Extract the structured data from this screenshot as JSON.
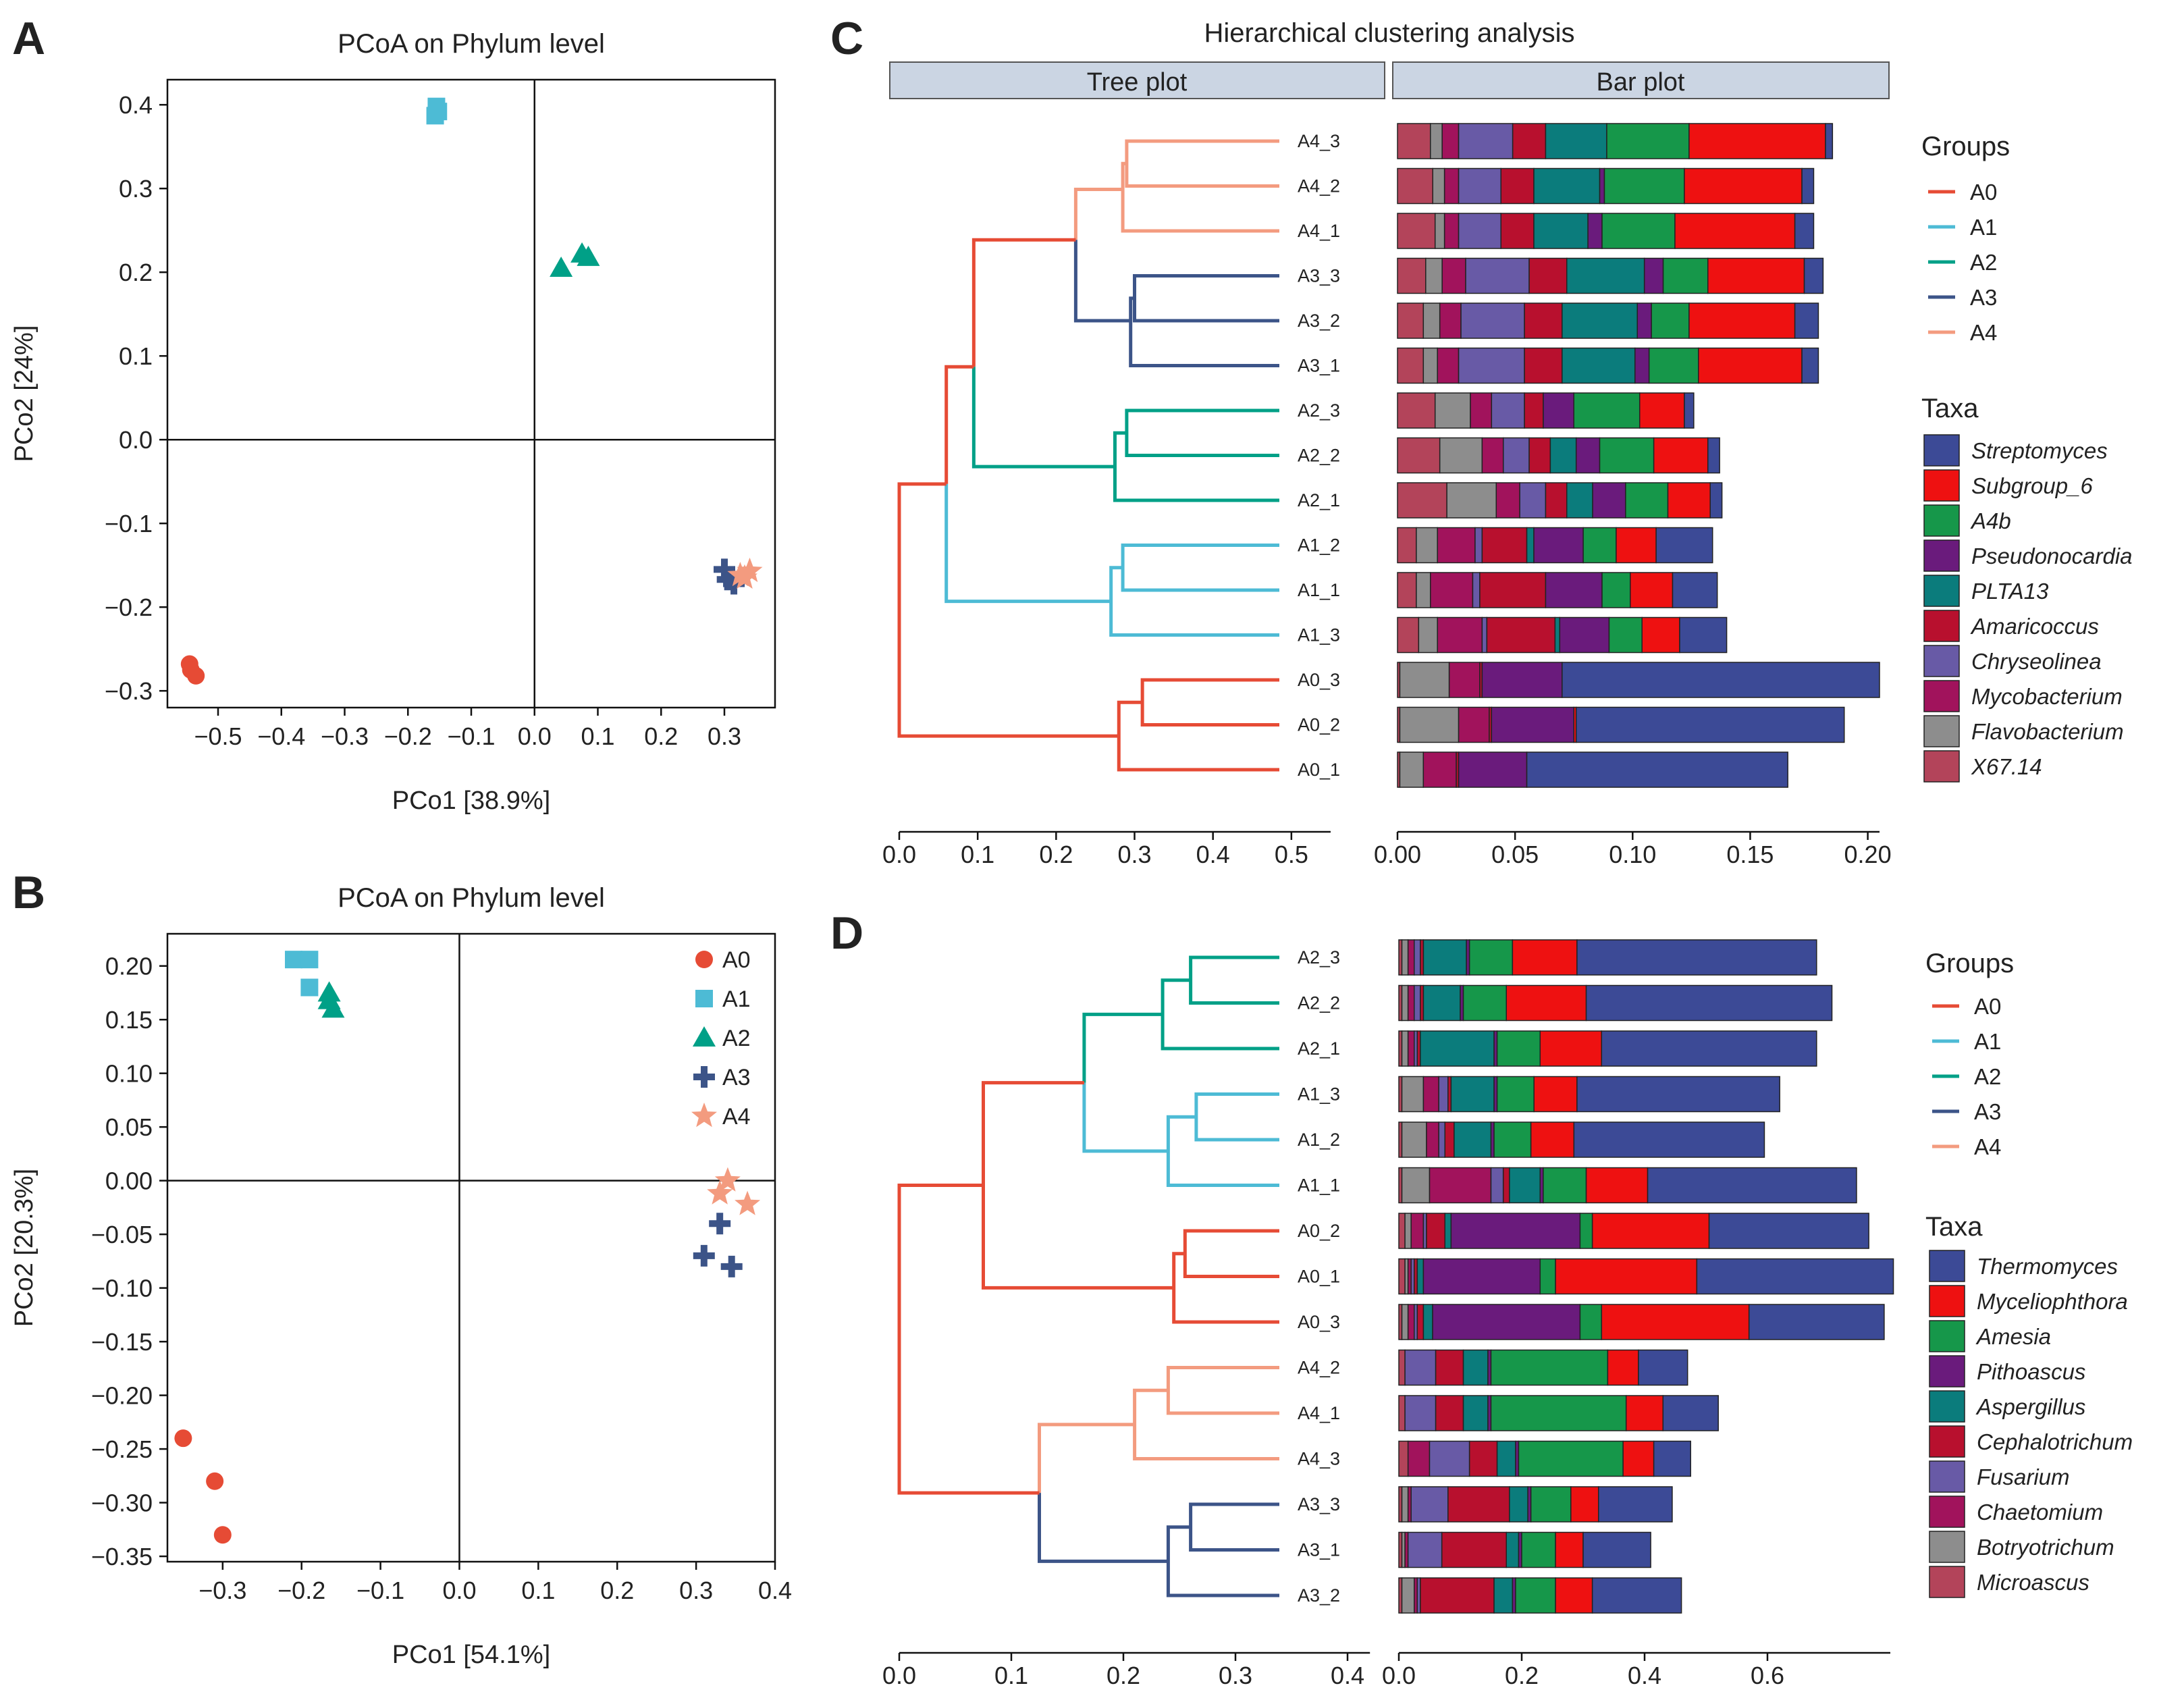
{
  "colors": {
    "groups": {
      "A0": "#e64b35",
      "A1": "#4dbbd5",
      "A2": "#00a087",
      "A3": "#3c5488",
      "A4": "#f39b7f"
    },
    "taxa_c": [
      "#3c4a96",
      "#ee1111",
      "#16974a",
      "#6a1b7c",
      "#0b7c7c",
      "#b8102e",
      "#685aa6",
      "#a1135c",
      "#8d8d8d",
      "#b3445a"
    ],
    "taxa_d": [
      "#3c4a96",
      "#ee1111",
      "#16974a",
      "#6a1b7c",
      "#0b7c7c",
      "#b8102e",
      "#685aa6",
      "#a1135c",
      "#8d8d8d",
      "#b3445a"
    ]
  },
  "panels": {
    "A": "A",
    "B": "B",
    "C": "C",
    "D": "D"
  },
  "chart_data": [
    {
      "id": "A",
      "type": "scatter",
      "title": "PCoA on Phylum level",
      "xlabel": "PCo1 [38.9%]",
      "ylabel": "PCo2 [24%]",
      "xlim": [
        -0.58,
        0.38
      ],
      "ylim": [
        -0.32,
        0.43
      ],
      "xticks": [
        -0.5,
        -0.4,
        -0.3,
        -0.2,
        -0.1,
        0.0,
        0.1,
        0.2,
        0.3
      ],
      "xtick_labels": [
        "−0.5",
        "−0.4",
        "−0.3",
        "−0.2",
        "−0.1",
        "0.0",
        "0.1",
        "0.2",
        "0.3"
      ],
      "yticks": [
        -0.3,
        -0.2,
        -0.1,
        0.0,
        0.1,
        0.2,
        0.3,
        0.4
      ],
      "ytick_labels": [
        "−0.3",
        "−0.2",
        "−0.1",
        "0.0",
        "0.1",
        "0.2",
        "0.3",
        "0.4"
      ],
      "series": [
        {
          "name": "A0",
          "shape": "circle",
          "points": [
            [
              -0.545,
              -0.268
            ],
            [
              -0.543,
              -0.275
            ],
            [
              -0.535,
              -0.282
            ]
          ]
        },
        {
          "name": "A1",
          "shape": "square",
          "points": [
            [
              -0.155,
              0.398
            ],
            [
              -0.152,
              0.392
            ],
            [
              -0.157,
              0.387
            ]
          ]
        },
        {
          "name": "A2",
          "shape": "triangle",
          "points": [
            [
              0.042,
              0.205
            ],
            [
              0.075,
              0.222
            ],
            [
              0.085,
              0.218
            ]
          ]
        },
        {
          "name": "A3",
          "shape": "plus",
          "points": [
            [
              0.305,
              -0.167
            ],
            [
              0.315,
              -0.172
            ],
            [
              0.3,
              -0.155
            ]
          ]
        },
        {
          "name": "A4",
          "shape": "star",
          "points": [
            [
              0.325,
              -0.162
            ],
            [
              0.34,
              -0.157
            ],
            [
              0.332,
              -0.165
            ]
          ]
        }
      ],
      "legend": false
    },
    {
      "id": "B",
      "type": "scatter",
      "title": "PCoA on Phylum level",
      "xlabel": "PCo1 [54.1%]",
      "ylabel": "PCo2 [20.3%]",
      "xlim": [
        -0.37,
        0.4
      ],
      "ylim": [
        -0.355,
        0.23
      ],
      "xticks": [
        -0.3,
        -0.2,
        -0.1,
        0.0,
        0.1,
        0.2,
        0.3,
        0.4
      ],
      "xtick_labels": [
        "−0.3",
        "−0.2",
        "−0.1",
        "0.0",
        "0.1",
        "0.2",
        "0.3",
        "0.4"
      ],
      "yticks": [
        -0.35,
        -0.3,
        -0.25,
        -0.2,
        -0.15,
        -0.1,
        -0.05,
        0.0,
        0.05,
        0.1,
        0.15,
        0.2
      ],
      "ytick_labels": [
        "−0.35",
        "−0.30",
        "−0.25",
        "−0.20",
        "−0.15",
        "−0.10",
        "−0.05",
        "0.00",
        "0.05",
        "0.10",
        "0.15",
        "0.20"
      ],
      "series": [
        {
          "name": "A0",
          "shape": "circle",
          "points": [
            [
              -0.35,
              -0.24
            ],
            [
              -0.31,
              -0.28
            ],
            [
              -0.3,
              -0.33
            ]
          ]
        },
        {
          "name": "A1",
          "shape": "square",
          "points": [
            [
              -0.21,
              0.206
            ],
            [
              -0.19,
              0.206
            ],
            [
              -0.19,
              0.18
            ]
          ]
        },
        {
          "name": "A2",
          "shape": "triangle",
          "points": [
            [
              -0.165,
              0.175
            ],
            [
              -0.16,
              0.16
            ],
            [
              -0.165,
              0.168
            ]
          ]
        },
        {
          "name": "A3",
          "shape": "plus",
          "points": [
            [
              0.33,
              -0.04
            ],
            [
              0.31,
              -0.07
            ],
            [
              0.345,
              -0.08
            ]
          ]
        },
        {
          "name": "A4",
          "shape": "star",
          "points": [
            [
              0.34,
              0.0
            ],
            [
              0.33,
              -0.012
            ],
            [
              0.365,
              -0.022
            ]
          ]
        }
      ],
      "legend": [
        "A0",
        "A1",
        "A2",
        "A3",
        "A4"
      ]
    },
    {
      "id": "C",
      "type": "dendrogram+stacked-bar",
      "title": "Hierarchical clustering analysis",
      "tree_strip": "Tree plot",
      "bar_strip": "Bar plot",
      "tree_xlim": [
        0,
        0.55
      ],
      "tree_ticks": [
        0.0,
        0.1,
        0.2,
        0.3,
        0.4,
        0.5
      ],
      "tree_tick_labels": [
        "0.0",
        "0.1",
        "0.2",
        "0.3",
        "0.4",
        "0.5"
      ],
      "bar_xlim": [
        0,
        0.205
      ],
      "bar_ticks": [
        0.0,
        0.05,
        0.1,
        0.15,
        0.2
      ],
      "bar_tick_labels": [
        "0.00",
        "0.05",
        "0.10",
        "0.15",
        "0.20"
      ],
      "samples": [
        "A4_3",
        "A4_2",
        "A4_1",
        "A3_3",
        "A3_2",
        "A3_1",
        "A2_3",
        "A2_2",
        "A2_1",
        "A1_2",
        "A1_1",
        "A1_3",
        "A0_3",
        "A0_2",
        "A0_1"
      ],
      "taxa": [
        "Streptomyces",
        "Subgroup_6",
        "A4b",
        "Pseudonocardia",
        "PLTA13",
        "Amaricoccus",
        "Chryseolinea",
        "Mycobacterium",
        "Flavobacterium",
        "X67.14"
      ],
      "bars": [
        [
          0.003,
          0.058,
          0.035,
          0.0,
          0.026,
          0.014,
          0.023,
          0.007,
          0.005,
          0.014
        ],
        [
          0.005,
          0.05,
          0.034,
          0.002,
          0.028,
          0.014,
          0.018,
          0.006,
          0.005,
          0.015
        ],
        [
          0.008,
          0.051,
          0.031,
          0.006,
          0.023,
          0.014,
          0.018,
          0.006,
          0.004,
          0.016
        ],
        [
          0.008,
          0.041,
          0.019,
          0.008,
          0.033,
          0.016,
          0.027,
          0.01,
          0.007,
          0.012
        ],
        [
          0.01,
          0.045,
          0.016,
          0.006,
          0.032,
          0.016,
          0.027,
          0.009,
          0.007,
          0.011
        ],
        [
          0.007,
          0.044,
          0.021,
          0.006,
          0.031,
          0.016,
          0.028,
          0.009,
          0.006,
          0.011
        ],
        [
          0.004,
          0.019,
          0.028,
          0.013,
          0.0,
          0.008,
          0.014,
          0.009,
          0.015,
          0.016
        ],
        [
          0.005,
          0.023,
          0.023,
          0.01,
          0.011,
          0.009,
          0.011,
          0.009,
          0.018,
          0.018
        ],
        [
          0.005,
          0.018,
          0.018,
          0.014,
          0.011,
          0.009,
          0.011,
          0.01,
          0.021,
          0.021
        ],
        [
          0.024,
          0.017,
          0.014,
          0.021,
          0.003,
          0.019,
          0.003,
          0.016,
          0.009,
          0.008
        ],
        [
          0.019,
          0.018,
          0.012,
          0.024,
          0.0,
          0.028,
          0.003,
          0.018,
          0.006,
          0.008
        ],
        [
          0.02,
          0.016,
          0.014,
          0.021,
          0.002,
          0.029,
          0.002,
          0.019,
          0.008,
          0.009
        ]
      ],
      "bars_a0": [
        [
          0.135,
          0.0,
          0.0,
          0.034,
          0.0,
          0.001,
          0.0,
          0.013,
          0.021,
          0.001
        ],
        [
          0.114,
          0.001,
          0.0,
          0.035,
          0.0,
          0.001,
          0.0,
          0.013,
          0.025,
          0.001
        ],
        [
          0.111,
          0.0,
          0.0,
          0.029,
          0.0,
          0.001,
          0.0,
          0.014,
          0.01,
          0.001
        ]
      ],
      "legend_groups": [
        "A0",
        "A1",
        "A2",
        "A3",
        "A4"
      ]
    },
    {
      "id": "D",
      "type": "dendrogram+stacked-bar",
      "tree_xlim": [
        0,
        0.42
      ],
      "tree_ticks": [
        0.0,
        0.1,
        0.2,
        0.3,
        0.4
      ],
      "tree_tick_labels": [
        "0.0",
        "0.1",
        "0.2",
        "0.3",
        "0.4"
      ],
      "bar_xlim": [
        0,
        0.8
      ],
      "bar_ticks": [
        0.0,
        0.2,
        0.4,
        0.6
      ],
      "bar_tick_labels": [
        "0.0",
        "0.2",
        "0.4",
        "0.6"
      ],
      "samples": [
        "A2_3",
        "A2_2",
        "A2_1",
        "A1_3",
        "A1_2",
        "A1_1",
        "A0_2",
        "A0_1",
        "A0_3",
        "A4_2",
        "A4_1",
        "A4_3",
        "A3_3",
        "A3_1",
        "A3_2"
      ],
      "taxa": [
        "Thermomyces",
        "Myceliophthora",
        "Amesia",
        "Pithoascus",
        "Aspergillus",
        "Cephalotrichum",
        "Fusarium",
        "Chaetomium",
        "Botryotrichum",
        "Microascus"
      ],
      "bars": [
        [
          0.39,
          0.105,
          0.07,
          0.005,
          0.07,
          0.005,
          0.01,
          0.01,
          0.01,
          0.005
        ],
        [
          0.4,
          0.13,
          0.07,
          0.005,
          0.06,
          0.005,
          0.01,
          0.01,
          0.01,
          0.005
        ],
        [
          0.35,
          0.1,
          0.07,
          0.005,
          0.12,
          0.005,
          0.005,
          0.01,
          0.01,
          0.005
        ],
        [
          0.33,
          0.07,
          0.06,
          0.005,
          0.07,
          0.005,
          0.015,
          0.025,
          0.035,
          0.005
        ],
        [
          0.31,
          0.07,
          0.06,
          0.005,
          0.06,
          0.015,
          0.01,
          0.02,
          0.04,
          0.005
        ],
        [
          0.34,
          0.1,
          0.07,
          0.005,
          0.05,
          0.01,
          0.02,
          0.1,
          0.045,
          0.005
        ],
        [
          0.26,
          0.19,
          0.02,
          0.21,
          0.01,
          0.03,
          0.005,
          0.02,
          0.01,
          0.01
        ],
        [
          0.32,
          0.23,
          0.025,
          0.19,
          0.01,
          0.005,
          0.005,
          0.005,
          0.005,
          0.01
        ],
        [
          0.22,
          0.24,
          0.035,
          0.24,
          0.015,
          0.01,
          0.005,
          0.01,
          0.01,
          0.005
        ],
        [
          0.08,
          0.05,
          0.19,
          0.005,
          0.04,
          0.045,
          0.05,
          0.0,
          0.0,
          0.01
        ],
        [
          0.09,
          0.06,
          0.22,
          0.005,
          0.04,
          0.045,
          0.05,
          0.0,
          0.0,
          0.01
        ],
        [
          0.06,
          0.05,
          0.17,
          0.005,
          0.03,
          0.045,
          0.065,
          0.035,
          0.0,
          0.015
        ]
      ],
      "bars_a3": [
        [
          0.12,
          0.045,
          0.065,
          0.005,
          0.03,
          0.1,
          0.06,
          0.005,
          0.01,
          0.005
        ],
        [
          0.11,
          0.045,
          0.055,
          0.005,
          0.02,
          0.105,
          0.055,
          0.005,
          0.005,
          0.005
        ],
        [
          0.145,
          0.06,
          0.065,
          0.005,
          0.03,
          0.12,
          0.005,
          0.005,
          0.02,
          0.005
        ]
      ],
      "legend_groups": [
        "A0",
        "A1",
        "A2",
        "A3",
        "A4"
      ]
    }
  ],
  "legend": {
    "groups_title": "Groups",
    "taxa_title": "Taxa",
    "group_names": [
      "A0",
      "A1",
      "A2",
      "A3",
      "A4"
    ]
  }
}
